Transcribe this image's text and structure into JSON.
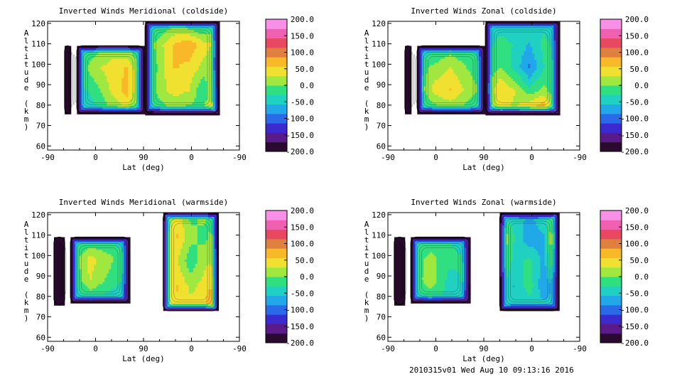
{
  "footer": "2010315v01 Wed Aug 10 09:13:16 2016",
  "colorbar": {
    "ticks": [
      "200.0",
      "150.0",
      "100.0",
      "50.0",
      "0.0",
      "-50.0",
      "-100.0",
      "-150.0",
      "-200.0"
    ],
    "vmin": -200,
    "vmax": 200,
    "colors": [
      "#2a0a2e",
      "#5a1a8a",
      "#3a2ad0",
      "#2a6ae8",
      "#20a8e8",
      "#20d0c0",
      "#30e080",
      "#a0e840",
      "#f0e030",
      "#f8b828",
      "#e08040",
      "#e84860",
      "#f060b0",
      "#f890e8"
    ]
  },
  "chart_data": [
    {
      "type": "heatmap",
      "title": "Inverted Winds Meridional (coldside)",
      "xlabel": "Lat (deg)",
      "ylabel": "Altitude (km)",
      "xticks": [
        "-90",
        "0",
        "90",
        "0",
        "-90"
      ],
      "yticks": [
        "60",
        "70",
        "80",
        "90",
        "100",
        "110",
        "120"
      ],
      "ylim": [
        58,
        121
      ],
      "blocks": [
        {
          "x0": -58,
          "x1": -47,
          "z0": 76,
          "z1": 109,
          "cells": [
            [
              -60,
              -200,
              -60
            ],
            [
              -80,
              -200,
              -70
            ],
            [
              -60,
              -200,
              -60
            ]
          ]
        },
        {
          "x0": -35,
          "x1": 90,
          "z0": 76,
          "z1": 109,
          "cells": [
            [
              -60,
              -20,
              10,
              -10,
              -40
            ],
            [
              -30,
              20,
              40,
              60,
              -20
            ],
            [
              -40,
              -20,
              30,
              70,
              -30
            ],
            [
              -60,
              -40,
              -10,
              20,
              -50
            ]
          ]
        },
        {
          "x0": 93,
          "x1": 230,
          "z0": 76,
          "z1": 121,
          "cells": [
            [
              -70,
              -40,
              -20,
              -40,
              -60,
              -30
            ],
            [
              -30,
              20,
              60,
              80,
              40,
              20
            ],
            [
              -50,
              10,
              60,
              50,
              20,
              10
            ],
            [
              -40,
              20,
              40,
              30,
              -30,
              70
            ],
            [
              -60,
              -30,
              0,
              -20,
              10,
              80
            ]
          ]
        }
      ]
    },
    {
      "type": "heatmap",
      "title": "Inverted Winds Zonal (coldside)",
      "xlabel": "Lat (deg)",
      "ylabel": "Altitude (km)",
      "xticks": [
        "-90",
        "0",
        "90",
        "0",
        "-90"
      ],
      "yticks": [
        "60",
        "70",
        "80",
        "90",
        "100",
        "110",
        "120"
      ],
      "ylim": [
        58,
        121
      ],
      "blocks": [
        {
          "x0": -58,
          "x1": -47,
          "z0": 76,
          "z1": 109,
          "cells": [
            [
              -60,
              -200,
              -60
            ],
            [
              -80,
              -200,
              -70
            ],
            [
              -60,
              -200,
              -60
            ]
          ]
        },
        {
          "x0": -35,
          "x1": 90,
          "z0": 76,
          "z1": 109,
          "cells": [
            [
              -70,
              -40,
              -20,
              -30,
              -60
            ],
            [
              -20,
              10,
              30,
              0,
              -20
            ],
            [
              -30,
              40,
              60,
              20,
              -10
            ],
            [
              -60,
              -30,
              -10,
              -20,
              -50
            ]
          ]
        },
        {
          "x0": 93,
          "x1": 230,
          "z0": 76,
          "z1": 121,
          "cells": [
            [
              -60,
              -40,
              -50,
              -30,
              -40,
              -50
            ],
            [
              -40,
              -20,
              -30,
              -60,
              -20,
              -40
            ],
            [
              -30,
              0,
              -40,
              -90,
              -30,
              -20
            ],
            [
              -20,
              60,
              30,
              -20,
              10,
              -30
            ],
            [
              -60,
              40,
              20,
              80,
              100,
              -40
            ]
          ]
        }
      ]
    },
    {
      "type": "heatmap",
      "title": "Inverted Winds Meridional (warmside)",
      "xlabel": "Lat (deg)",
      "ylabel": "Altitude (km)",
      "xticks": [
        "-90",
        "0",
        "90",
        "0",
        "-90"
      ],
      "yticks": [
        "60",
        "70",
        "80",
        "90",
        "100",
        "110",
        "120"
      ],
      "ylim": [
        58,
        121
      ],
      "blocks": [
        {
          "x0": -78,
          "x1": -58,
          "z0": 76,
          "z1": 109,
          "cells": [
            [
              -60,
              -200,
              -60
            ],
            [
              -80,
              -200,
              -70
            ],
            [
              -60,
              -200,
              -60
            ]
          ]
        },
        {
          "x0": -47,
          "x1": 62,
          "z0": 77,
          "z1": 109,
          "cells": [
            [
              -60,
              -30,
              -40,
              -50
            ],
            [
              -30,
              40,
              10,
              -30
            ],
            [
              -40,
              30,
              -10,
              -40
            ],
            [
              -60,
              -40,
              -50,
              -60
            ]
          ]
        },
        {
          "x0": 127,
          "x1": 230,
          "z0": 73,
          "z1": 121,
          "cells": [
            [
              -30,
              40,
              -10,
              10,
              -60
            ],
            [
              20,
              60,
              10,
              -10,
              30
            ],
            [
              40,
              30,
              -20,
              20,
              40
            ],
            [
              30,
              60,
              20,
              40,
              80
            ],
            [
              -10,
              50,
              40,
              60,
              120
            ]
          ]
        }
      ]
    },
    {
      "type": "heatmap",
      "title": "Inverted Winds Zonal (warmside)",
      "xlabel": "Lat (deg)",
      "ylabel": "Altitude (km)",
      "xticks": [
        "-90",
        "0",
        "90",
        "0",
        "-90"
      ],
      "yticks": [
        "60",
        "70",
        "80",
        "90",
        "100",
        "110",
        "120"
      ],
      "ylim": [
        58,
        121
      ],
      "blocks": [
        {
          "x0": -78,
          "x1": -58,
          "z0": 76,
          "z1": 109,
          "cells": [
            [
              -60,
              -200,
              -60
            ],
            [
              -80,
              -200,
              -70
            ],
            [
              -60,
              -200,
              -60
            ]
          ]
        },
        {
          "x0": -47,
          "x1": 62,
          "z0": 77,
          "z1": 109,
          "cells": [
            [
              -60,
              -20,
              -30,
              -50
            ],
            [
              -20,
              10,
              -20,
              -30
            ],
            [
              -30,
              20,
              -40,
              -20
            ],
            [
              -60,
              -30,
              -40,
              -60
            ]
          ]
        },
        {
          "x0": 120,
          "x1": 230,
          "z0": 73,
          "z1": 121,
          "cells": [
            [
              -50,
              -40,
              -60,
              -30,
              -10
            ],
            [
              40,
              -30,
              -80,
              -60,
              100
            ],
            [
              20,
              -40,
              -20,
              -70,
              60
            ],
            [
              -20,
              -60,
              -10,
              -80,
              -40
            ],
            [
              -30,
              -50,
              -60,
              -40,
              -50
            ]
          ]
        }
      ]
    }
  ]
}
